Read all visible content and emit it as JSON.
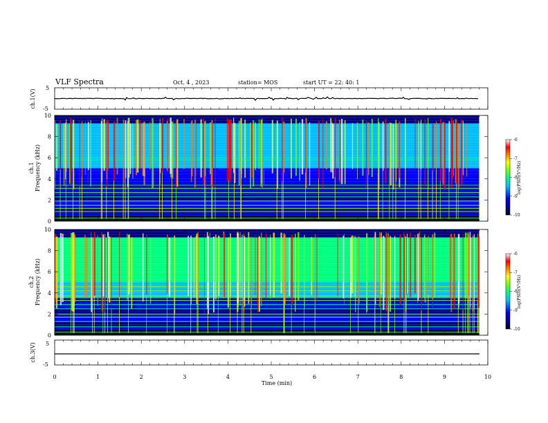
{
  "header": {
    "title": "VLF Spectra",
    "date": "Oct. 4 , 2023",
    "station": "station= MOS",
    "start": "start  UT =   22: 40: 1"
  },
  "colors": {
    "frame": "#000000",
    "background": "#ffffff",
    "colormap": [
      "#000000",
      "#000080",
      "#0000ff",
      "#00bfff",
      "#00ff7f",
      "#7fff00",
      "#ffff00",
      "#ff7f00",
      "#ff0000",
      "#ffffff"
    ]
  },
  "chart_data": [
    {
      "type": "line",
      "name": "ch.1",
      "ylabel": "ch.1(V)",
      "ylim": [
        -5,
        5
      ],
      "yticks": [
        "5",
        "-5"
      ],
      "xlim": [
        0,
        10
      ],
      "series": [
        {
          "values": "flat near 0 V with small spikes"
        }
      ]
    },
    {
      "type": "heatmap",
      "name": "ch.1",
      "ylabel": "ch.1\nFrequency (kHz)",
      "ylabel_top": "ch.1",
      "ylabel_bottom": "Frequency (kHz)",
      "ylim": [
        0,
        10
      ],
      "yticks": [
        "0",
        "2",
        "4",
        "6",
        "8",
        "10"
      ],
      "xlim": [
        0,
        10
      ],
      "data_end_min": 9.8,
      "colorbar": {
        "label": "log(PSD)(V²/Hz)",
        "range": [
          -10,
          -6
        ],
        "ticks": [
          "-6",
          "-7",
          "-8",
          "-9",
          "-10"
        ]
      }
    },
    {
      "type": "heatmap",
      "name": "ch.2",
      "ylabel": "ch.2\nFrequency (kHz)",
      "ylabel_top": "ch.2",
      "ylabel_bottom": "Frequency (kHz)",
      "ylim": [
        0,
        10
      ],
      "yticks": [
        "0",
        "2",
        "4",
        "6",
        "8",
        "10"
      ],
      "xlim": [
        0,
        10
      ],
      "data_end_min": 9.8,
      "colorbar": {
        "label": "log(PSD)(V²/Hz)",
        "range": [
          -10,
          -6
        ],
        "ticks": [
          "-6",
          "-7",
          "-8",
          "-9",
          "-10"
        ]
      }
    },
    {
      "type": "line",
      "name": "ch.3",
      "ylabel": "ch.3(V)",
      "ylim": [
        -5,
        5
      ],
      "yticks": [
        "5",
        "-5"
      ],
      "xlim": [
        0,
        10
      ],
      "series": [
        {
          "values": "flat at about 0 V"
        }
      ]
    }
  ],
  "xaxis": {
    "label": "Time (min)",
    "ticks": [
      "0",
      "1",
      "2",
      "3",
      "4",
      "5",
      "6",
      "7",
      "8",
      "9",
      "10"
    ]
  }
}
